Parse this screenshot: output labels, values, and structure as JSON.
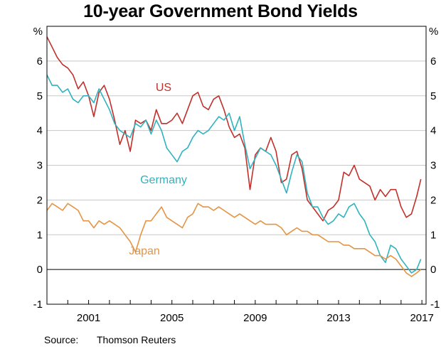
{
  "title": "10-year Government Bond Yields",
  "source": {
    "label": "Source:",
    "value": "Thomson Reuters"
  },
  "chart_data": {
    "type": "line",
    "title": "10-year Government Bond Yields",
    "yunit_left": "%",
    "yunit_right": "%",
    "ylim": [
      -1,
      7
    ],
    "xlim": [
      1999.0,
      2017.2
    ],
    "yticks": [
      -1,
      0,
      1,
      2,
      3,
      4,
      5,
      6
    ],
    "xticks": [
      2001,
      2005,
      2009,
      2013,
      2017
    ],
    "grid": true,
    "zero_line": true,
    "series": [
      {
        "name": "US",
        "color": "#c0312b",
        "x": [
          1999.0,
          1999.25,
          1999.5,
          1999.75,
          2000.0,
          2000.25,
          2000.5,
          2000.75,
          2001.0,
          2001.25,
          2001.5,
          2001.75,
          2002.0,
          2002.25,
          2002.5,
          2002.75,
          2003.0,
          2003.25,
          2003.5,
          2003.75,
          2004.0,
          2004.25,
          2004.5,
          2004.75,
          2005.0,
          2005.25,
          2005.5,
          2005.75,
          2006.0,
          2006.25,
          2006.5,
          2006.75,
          2007.0,
          2007.25,
          2007.5,
          2007.75,
          2008.0,
          2008.25,
          2008.5,
          2008.75,
          2009.0,
          2009.25,
          2009.5,
          2009.75,
          2010.0,
          2010.25,
          2010.5,
          2010.75,
          2011.0,
          2011.25,
          2011.5,
          2011.75,
          2012.0,
          2012.25,
          2012.5,
          2012.75,
          2013.0,
          2013.25,
          2013.5,
          2013.75,
          2014.0,
          2014.25,
          2014.5,
          2014.75,
          2015.0,
          2015.25,
          2015.5,
          2015.75,
          2016.0,
          2016.25,
          2016.5,
          2016.75,
          2016.95
        ],
        "values": [
          6.7,
          6.4,
          6.1,
          5.9,
          5.8,
          5.6,
          5.2,
          5.4,
          5.0,
          4.4,
          5.1,
          5.3,
          4.9,
          4.3,
          3.6,
          4.0,
          3.4,
          4.3,
          4.2,
          4.3,
          4.0,
          4.6,
          4.2,
          4.2,
          4.3,
          4.5,
          4.2,
          4.6,
          5.0,
          5.1,
          4.7,
          4.6,
          4.9,
          5.0,
          4.6,
          4.1,
          3.8,
          3.9,
          3.5,
          2.3,
          3.3,
          3.5,
          3.4,
          3.8,
          3.4,
          2.5,
          2.6,
          3.3,
          3.4,
          2.9,
          2.0,
          1.8,
          1.6,
          1.4,
          1.7,
          1.8,
          2.0,
          2.8,
          2.7,
          3.0,
          2.6,
          2.5,
          2.4,
          2.0,
          2.3,
          2.1,
          2.3,
          2.3,
          1.8,
          1.5,
          1.6,
          2.1,
          2.6
        ]
      },
      {
        "name": "Germany",
        "color": "#2fb3bf",
        "x": [
          1999.0,
          1999.25,
          1999.5,
          1999.75,
          2000.0,
          2000.25,
          2000.5,
          2000.75,
          2001.0,
          2001.25,
          2001.5,
          2001.75,
          2002.0,
          2002.25,
          2002.5,
          2002.75,
          2003.0,
          2003.25,
          2003.5,
          2003.75,
          2004.0,
          2004.25,
          2004.5,
          2004.75,
          2005.0,
          2005.25,
          2005.5,
          2005.75,
          2006.0,
          2006.25,
          2006.5,
          2006.75,
          2007.0,
          2007.25,
          2007.5,
          2007.75,
          2008.0,
          2008.25,
          2008.5,
          2008.75,
          2009.0,
          2009.25,
          2009.5,
          2009.75,
          2010.0,
          2010.25,
          2010.5,
          2010.75,
          2011.0,
          2011.25,
          2011.5,
          2011.75,
          2012.0,
          2012.25,
          2012.5,
          2012.75,
          2013.0,
          2013.25,
          2013.5,
          2013.75,
          2014.0,
          2014.25,
          2014.5,
          2014.75,
          2015.0,
          2015.25,
          2015.5,
          2015.75,
          2016.0,
          2016.25,
          2016.5,
          2016.75,
          2016.95
        ],
        "values": [
          5.6,
          5.3,
          5.3,
          5.1,
          5.2,
          4.9,
          4.8,
          5.0,
          5.0,
          4.8,
          5.2,
          4.9,
          4.6,
          4.2,
          4.0,
          3.9,
          3.8,
          4.2,
          4.1,
          4.3,
          3.9,
          4.3,
          4.0,
          3.5,
          3.3,
          3.1,
          3.4,
          3.5,
          3.8,
          4.0,
          3.9,
          4.0,
          4.2,
          4.4,
          4.3,
          4.5,
          4.0,
          4.4,
          3.6,
          2.9,
          3.2,
          3.5,
          3.4,
          3.3,
          3.0,
          2.6,
          2.2,
          2.8,
          3.3,
          3.1,
          2.2,
          1.8,
          1.8,
          1.5,
          1.3,
          1.4,
          1.6,
          1.5,
          1.8,
          1.9,
          1.6,
          1.4,
          1.0,
          0.8,
          0.4,
          0.2,
          0.7,
          0.6,
          0.3,
          0.1,
          -0.1,
          0.0,
          0.3
        ]
      },
      {
        "name": "Japan",
        "color": "#e49443",
        "x": [
          1999.0,
          1999.25,
          1999.5,
          1999.75,
          2000.0,
          2000.25,
          2000.5,
          2000.75,
          2001.0,
          2001.25,
          2001.5,
          2001.75,
          2002.0,
          2002.25,
          2002.5,
          2002.75,
          2003.0,
          2003.25,
          2003.5,
          2003.75,
          2004.0,
          2004.25,
          2004.5,
          2004.75,
          2005.0,
          2005.25,
          2005.5,
          2005.75,
          2006.0,
          2006.25,
          2006.5,
          2006.75,
          2007.0,
          2007.25,
          2007.5,
          2007.75,
          2008.0,
          2008.25,
          2008.5,
          2008.75,
          2009.0,
          2009.25,
          2009.5,
          2009.75,
          2010.0,
          2010.25,
          2010.5,
          2010.75,
          2011.0,
          2011.25,
          2011.5,
          2011.75,
          2012.0,
          2012.25,
          2012.5,
          2012.75,
          2013.0,
          2013.25,
          2013.5,
          2013.75,
          2014.0,
          2014.25,
          2014.5,
          2014.75,
          2015.0,
          2015.25,
          2015.5,
          2015.75,
          2016.0,
          2016.25,
          2016.5,
          2016.75,
          2016.95
        ],
        "values": [
          1.7,
          1.9,
          1.8,
          1.7,
          1.9,
          1.8,
          1.7,
          1.4,
          1.4,
          1.2,
          1.4,
          1.3,
          1.4,
          1.3,
          1.2,
          1.0,
          0.8,
          0.5,
          1.0,
          1.4,
          1.4,
          1.6,
          1.8,
          1.5,
          1.4,
          1.3,
          1.2,
          1.5,
          1.6,
          1.9,
          1.8,
          1.8,
          1.7,
          1.8,
          1.7,
          1.6,
          1.5,
          1.6,
          1.5,
          1.4,
          1.3,
          1.4,
          1.3,
          1.3,
          1.3,
          1.2,
          1.0,
          1.1,
          1.2,
          1.1,
          1.1,
          1.0,
          1.0,
          0.9,
          0.8,
          0.8,
          0.8,
          0.7,
          0.7,
          0.6,
          0.6,
          0.6,
          0.5,
          0.4,
          0.4,
          0.3,
          0.4,
          0.3,
          0.1,
          -0.1,
          -0.2,
          -0.1,
          0.0
        ]
      }
    ]
  }
}
